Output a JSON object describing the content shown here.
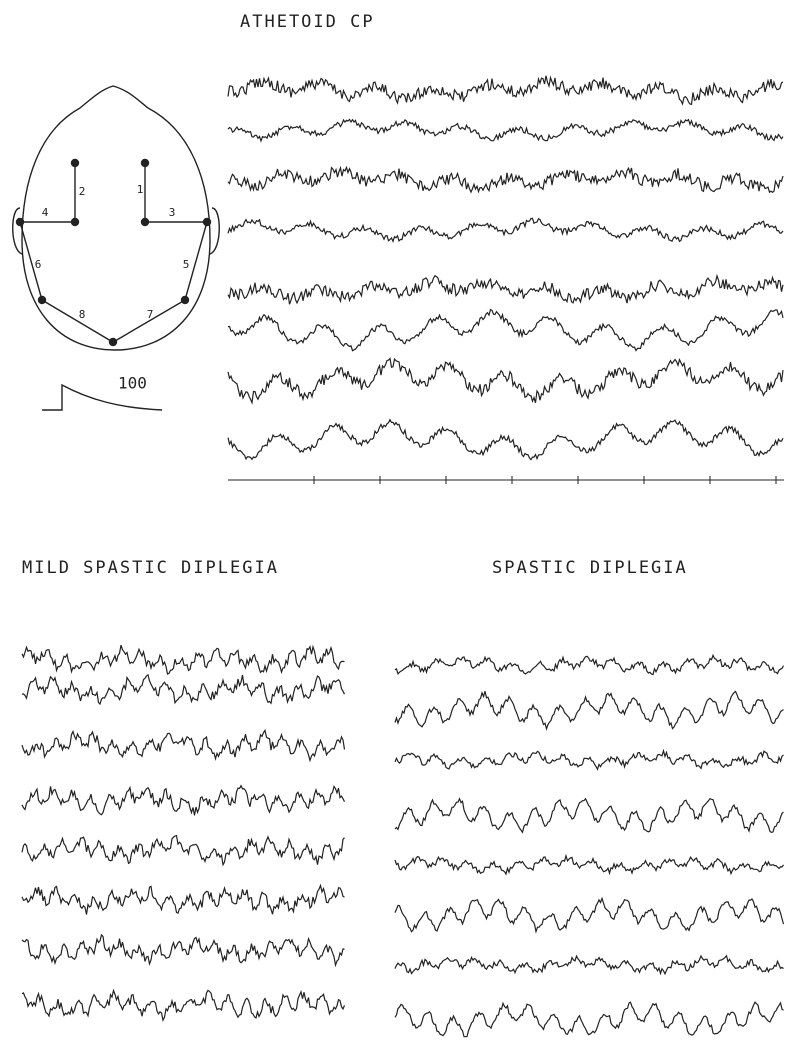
{
  "title": "ATHETOID CP",
  "head_diagram": {
    "leads": [
      "1",
      "2",
      "3",
      "4",
      "5",
      "6",
      "7",
      "8"
    ],
    "calibration": "100"
  },
  "panels": [
    {
      "title": "MILD SPASTIC DIPLEGIA"
    },
    {
      "title": "SPASTIC DIPLEGIA"
    }
  ]
}
